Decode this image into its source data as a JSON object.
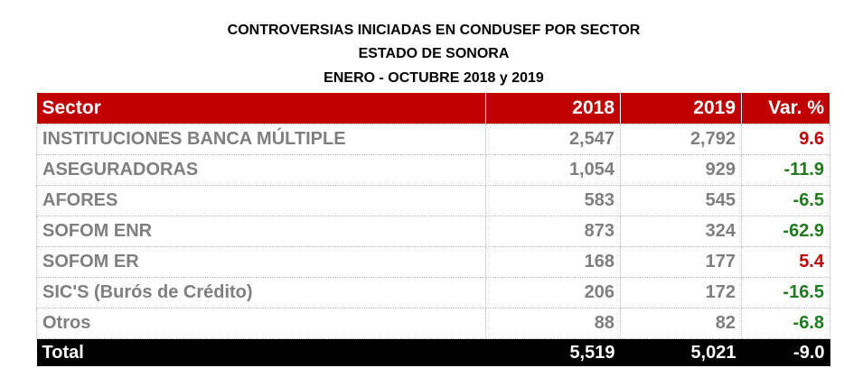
{
  "header": {
    "lines": [
      "CONTROVERSIAS INICIADAS EN CONDUSEF POR SECTOR",
      "ESTADO DE SONORA",
      "ENERO - OCTUBRE 2018 y 2019"
    ]
  },
  "table": {
    "columns": [
      "Sector",
      "2018",
      "2019",
      "Var. %"
    ],
    "rows": [
      {
        "sector": "INSTITUCIONES BANCA MÚLTIPLE",
        "y2018": "2,547",
        "y2019": "2,792",
        "var": "9.6",
        "var_color": "#c00000"
      },
      {
        "sector": "ASEGURADORAS",
        "y2018": "1,054",
        "y2019": "929",
        "var": "-11.9",
        "var_color": "#1e7b1e"
      },
      {
        "sector": "AFORES",
        "y2018": "583",
        "y2019": "545",
        "var": "-6.5",
        "var_color": "#1e7b1e"
      },
      {
        "sector": "SOFOM ENR",
        "y2018": "873",
        "y2019": "324",
        "var": "-62.9",
        "var_color": "#1e7b1e"
      },
      {
        "sector": "SOFOM ER",
        "y2018": "168",
        "y2019": "177",
        "var": "5.4",
        "var_color": "#c00000"
      },
      {
        "sector": "SIC'S (Burós de Crédito)",
        "y2018": "206",
        "y2019": "172",
        "var": "-16.5",
        "var_color": "#1e7b1e"
      },
      {
        "sector": "Otros",
        "y2018": "88",
        "y2019": "82",
        "var": "-6.8",
        "var_color": "#1e7b1e"
      }
    ],
    "total": {
      "sector": "Total",
      "y2018": "5,519",
      "y2019": "5,021",
      "var": "-9.0"
    }
  }
}
